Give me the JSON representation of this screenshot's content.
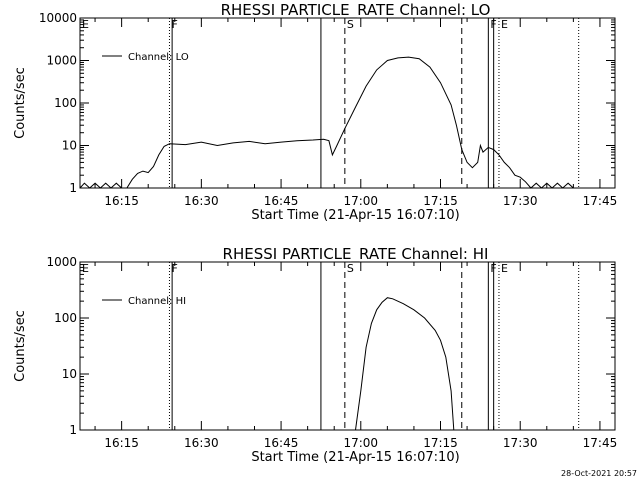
{
  "footer_timestamp": "28-Oct-2021 20:57",
  "chart_data": [
    {
      "type": "line",
      "title": "RHESSI PARTICLE_RATE Channel: LO",
      "xlabel": "Start Time (21-Apr-15 16:07:10)",
      "ylabel": "Counts/sec",
      "y_scale": "log",
      "xlim": [
        "16:07:10",
        "17:47:50"
      ],
      "ylim": [
        1,
        10000
      ],
      "x_ticks": [
        "16:15",
        "16:30",
        "16:45",
        "17:00",
        "17:15",
        "17:30",
        "17:45"
      ],
      "y_ticks": [
        "1",
        "10",
        "100",
        "1000",
        "10000"
      ],
      "legend": {
        "label": "Channel: LO",
        "placement": "top-left"
      },
      "series": [
        {
          "name": "Channel: LO",
          "points": [
            [
              "16:07:10",
              1
            ],
            [
              "16:08:00",
              1.3
            ],
            [
              "16:09:00",
              1
            ],
            [
              "16:10:00",
              1.3
            ],
            [
              "16:11:00",
              1
            ],
            [
              "16:12:00",
              1.3
            ],
            [
              "16:13:00",
              1
            ],
            [
              "16:14:00",
              1.3
            ],
            [
              "16:15:00",
              1
            ],
            [
              "16:16:00",
              1
            ],
            [
              "16:17:00",
              1.6
            ],
            [
              "16:18:00",
              2.2
            ],
            [
              "16:19:00",
              2.5
            ],
            [
              "16:20:00",
              2.3
            ],
            [
              "16:21:00",
              3.2
            ],
            [
              "16:22:00",
              6
            ],
            [
              "16:23:00",
              9.5
            ],
            [
              "16:24:00",
              11
            ],
            [
              "16:27:00",
              10.5
            ],
            [
              "16:30:00",
              12
            ],
            [
              "16:33:00",
              10
            ],
            [
              "16:36:00",
              11.5
            ],
            [
              "16:39:00",
              12.5
            ],
            [
              "16:42:00",
              11
            ],
            [
              "16:45:00",
              12
            ],
            [
              "16:48:00",
              13
            ],
            [
              "16:51:00",
              13.5
            ],
            [
              "16:53:00",
              14
            ],
            [
              "16:54:00",
              13
            ],
            [
              "16:54:40",
              6
            ],
            [
              "16:55:30",
              10
            ],
            [
              "16:57:00",
              25
            ],
            [
              "16:59:00",
              80
            ],
            [
              "17:01:00",
              250
            ],
            [
              "17:03:00",
              600
            ],
            [
              "17:05:00",
              1000
            ],
            [
              "17:07:00",
              1150
            ],
            [
              "17:09:00",
              1200
            ],
            [
              "17:11:00",
              1100
            ],
            [
              "17:13:00",
              700
            ],
            [
              "17:15:00",
              300
            ],
            [
              "17:17:00",
              90
            ],
            [
              "17:18:00",
              30
            ],
            [
              "17:19:00",
              8
            ],
            [
              "17:20:00",
              4
            ],
            [
              "17:21:00",
              3
            ],
            [
              "17:22:00",
              4
            ],
            [
              "17:22:30",
              10
            ],
            [
              "17:23:00",
              7
            ],
            [
              "17:24:00",
              9
            ],
            [
              "17:25:00",
              8
            ],
            [
              "17:26:00",
              6
            ],
            [
              "17:27:00",
              4
            ],
            [
              "17:28:00",
              3
            ],
            [
              "17:29:00",
              2
            ],
            [
              "17:30:00",
              1.8
            ],
            [
              "17:31:00",
              1.4
            ],
            [
              "17:32:00",
              1
            ],
            [
              "17:33:00",
              1.3
            ],
            [
              "17:34:00",
              1
            ],
            [
              "17:35:00",
              1.3
            ],
            [
              "17:36:00",
              1
            ],
            [
              "17:37:00",
              1.3
            ],
            [
              "17:38:00",
              1
            ],
            [
              "17:39:00",
              1.3
            ],
            [
              "17:40:00",
              1
            ]
          ]
        }
      ],
      "markers": [
        {
          "time": "16:07:10",
          "label": "E",
          "style": "solid"
        },
        {
          "time": "16:24:00",
          "label": "F",
          "style": "dotted"
        },
        {
          "time": "16:24:30",
          "label": "",
          "style": "solid"
        },
        {
          "time": "16:52:30",
          "label": "",
          "style": "solid"
        },
        {
          "time": "16:57:00",
          "label": "S",
          "style": "dashed"
        },
        {
          "time": "17:19:00",
          "label": "",
          "style": "dashed"
        },
        {
          "time": "17:24:00",
          "label": "F",
          "style": "solid"
        },
        {
          "time": "17:25:00",
          "label": "",
          "style": "solid"
        },
        {
          "time": "17:26:00",
          "label": "E",
          "style": "dotted"
        },
        {
          "time": "17:41:00",
          "label": "",
          "style": "dotted"
        }
      ]
    },
    {
      "type": "line",
      "title": "RHESSI PARTICLE_RATE Channel: HI",
      "xlabel": "Start Time (21-Apr-15 16:07:10)",
      "ylabel": "Counts/sec",
      "y_scale": "log",
      "xlim": [
        "16:07:10",
        "17:47:50"
      ],
      "ylim": [
        1,
        1000
      ],
      "x_ticks": [
        "16:15",
        "16:30",
        "16:45",
        "17:00",
        "17:15",
        "17:30",
        "17:45"
      ],
      "y_ticks": [
        "1",
        "10",
        "100",
        "1000"
      ],
      "legend": {
        "label": "Channel: HI",
        "placement": "top-left"
      },
      "series": [
        {
          "name": "Channel: HI",
          "points": [
            [
              "16:59:00",
              1
            ],
            [
              "17:00:00",
              5
            ],
            [
              "17:01:00",
              30
            ],
            [
              "17:02:00",
              80
            ],
            [
              "17:03:00",
              140
            ],
            [
              "17:04:00",
              190
            ],
            [
              "17:05:00",
              230
            ],
            [
              "17:06:00",
              220
            ],
            [
              "17:08:00",
              180
            ],
            [
              "17:10:00",
              140
            ],
            [
              "17:12:00",
              100
            ],
            [
              "17:14:00",
              60
            ],
            [
              "17:15:00",
              40
            ],
            [
              "17:16:00",
              20
            ],
            [
              "17:17:00",
              5
            ],
            [
              "17:17:30",
              1
            ]
          ]
        }
      ],
      "markers": [
        {
          "time": "16:07:10",
          "label": "E",
          "style": "solid"
        },
        {
          "time": "16:24:00",
          "label": "F",
          "style": "dotted"
        },
        {
          "time": "16:24:30",
          "label": "",
          "style": "solid"
        },
        {
          "time": "16:52:30",
          "label": "",
          "style": "solid"
        },
        {
          "time": "16:57:00",
          "label": "S",
          "style": "dashed"
        },
        {
          "time": "17:19:00",
          "label": "",
          "style": "dashed"
        },
        {
          "time": "17:24:00",
          "label": "F",
          "style": "solid"
        },
        {
          "time": "17:25:00",
          "label": "",
          "style": "solid"
        },
        {
          "time": "17:26:00",
          "label": "E",
          "style": "dotted"
        },
        {
          "time": "17:41:00",
          "label": "",
          "style": "dotted"
        }
      ]
    }
  ]
}
